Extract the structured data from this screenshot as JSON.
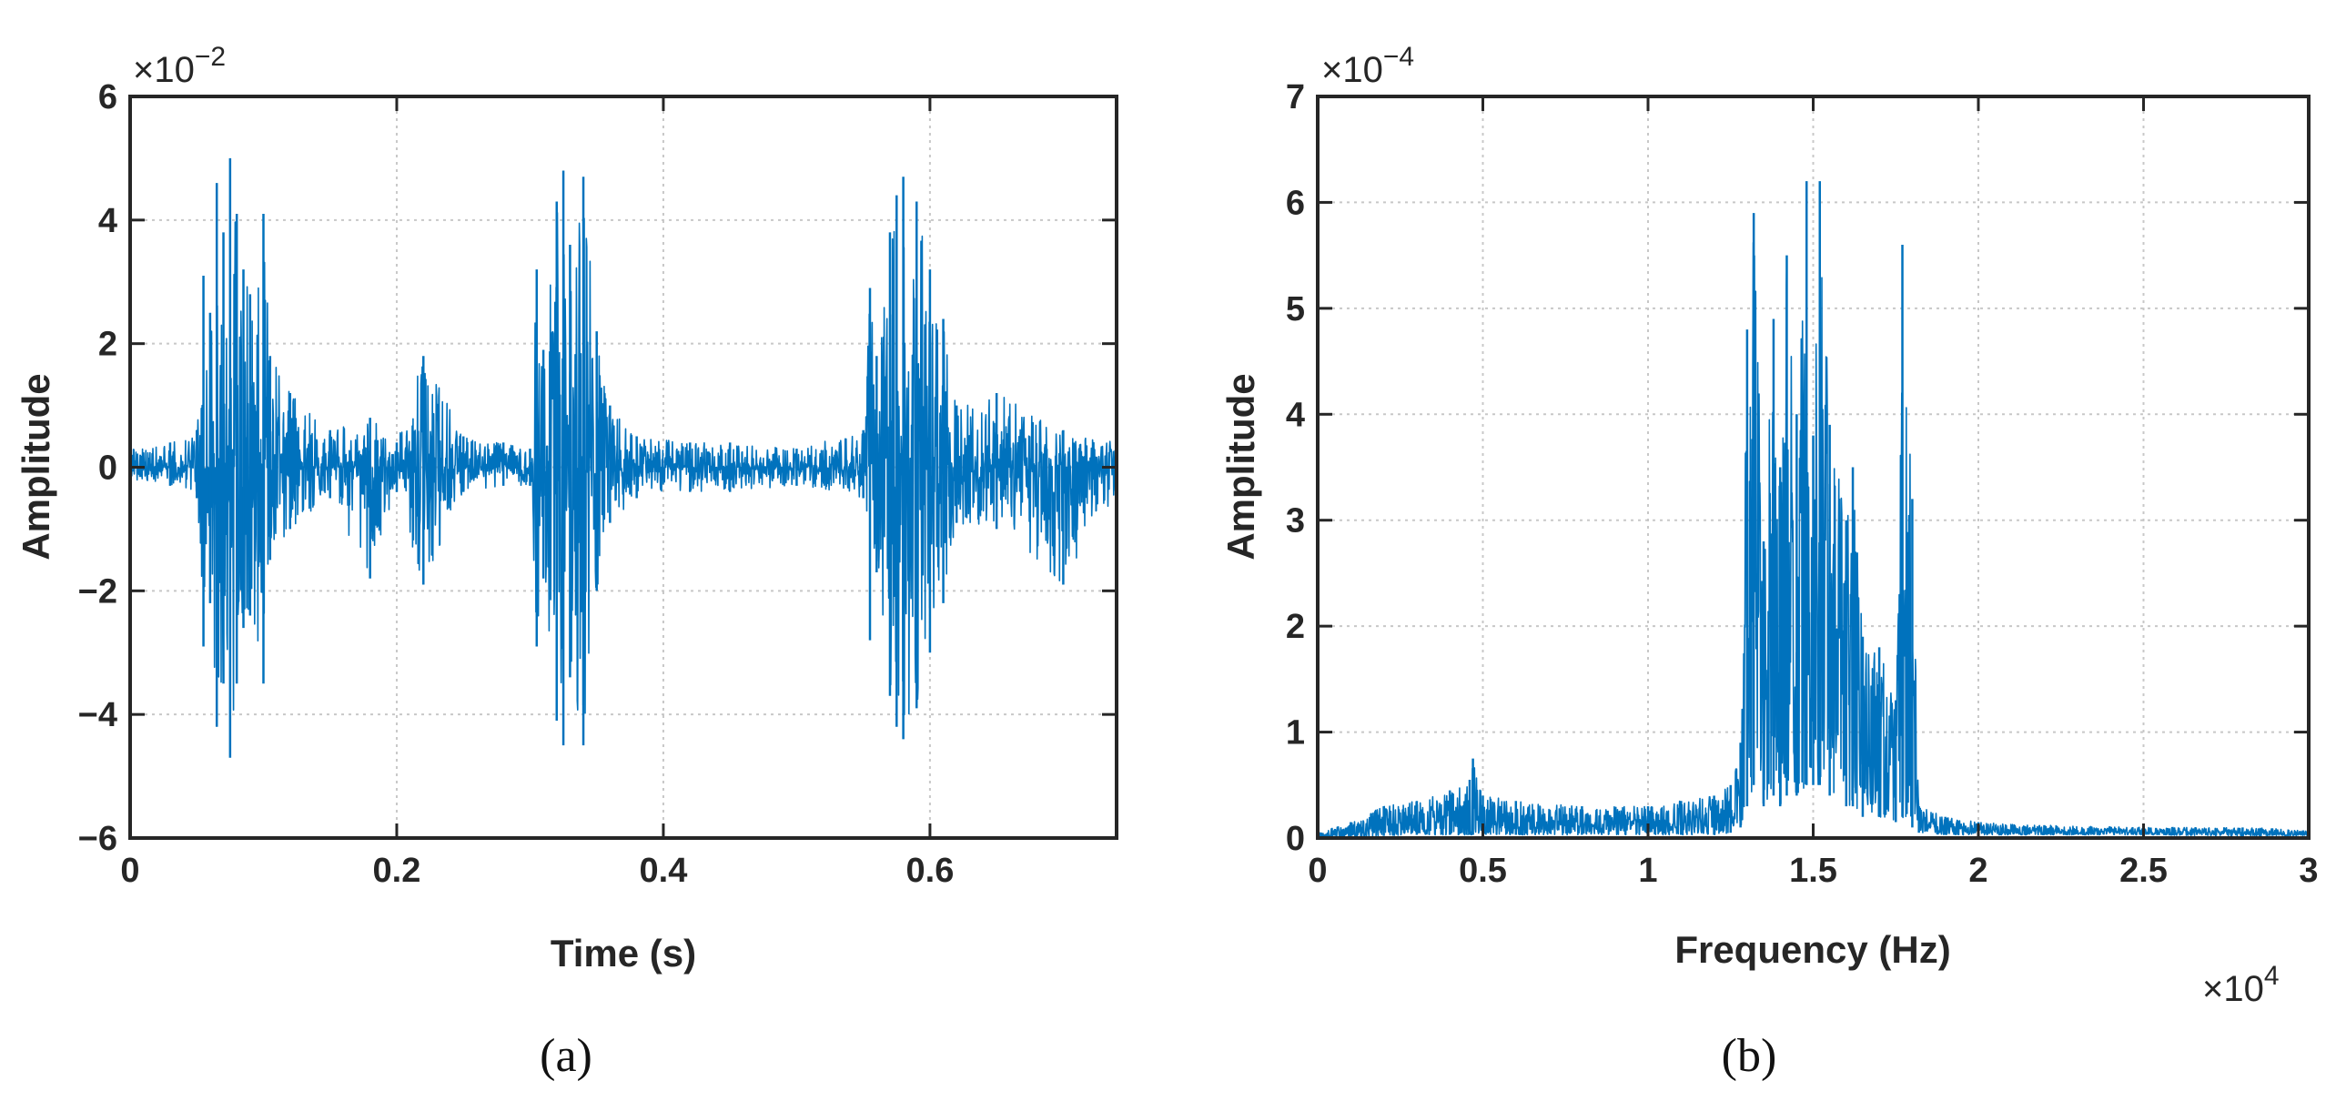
{
  "chart_data": [
    {
      "type": "line",
      "panel": "a",
      "caption": "(a)",
      "title": "",
      "xlabel": "Time (s)",
      "ylabel": "Amplitude",
      "y_exponent_base": "×10",
      "y_exponent": "−2",
      "x_exponent_base": "",
      "x_exponent": "",
      "xlim": [
        0,
        0.74
      ],
      "ylim": [
        -6,
        6
      ],
      "xticks": [
        0,
        0.2,
        0.4,
        0.6
      ],
      "xtick_labels": [
        "0",
        "0.2",
        "0.4",
        "0.6"
      ],
      "yticks": [
        -6,
        -4,
        -2,
        0,
        2,
        4,
        6
      ],
      "ytick_labels": [
        "−6",
        "−4",
        "−2",
        "0",
        "2",
        "4",
        "6"
      ],
      "grid": true,
      "legend": "none",
      "color": "#0072BD",
      "series": [
        {
          "x": [
            0.0,
            0.03,
            0.05,
            0.055,
            0.06,
            0.065,
            0.07,
            0.075,
            0.08,
            0.085,
            0.09,
            0.1,
            0.105,
            0.12,
            0.15,
            0.18,
            0.2,
            0.22,
            0.25,
            0.28,
            0.3,
            0.305,
            0.31,
            0.32,
            0.325,
            0.33,
            0.34,
            0.35,
            0.36,
            0.38,
            0.42,
            0.45,
            0.5,
            0.55,
            0.555,
            0.56,
            0.57,
            0.575,
            0.58,
            0.59,
            0.6,
            0.61,
            0.62,
            0.65,
            0.7,
            0.74
          ],
          "upper": [
            0.3,
            0.4,
            0.6,
            3.1,
            2.5,
            4.6,
            3.8,
            5.0,
            4.1,
            3.2,
            2.8,
            4.1,
            1.8,
            1.2,
            0.6,
            0.8,
            0.4,
            1.8,
            0.5,
            0.4,
            0.3,
            3.2,
            1.9,
            4.3,
            4.8,
            3.6,
            4.7,
            2.2,
            1.0,
            0.5,
            0.4,
            0.4,
            0.3,
            0.6,
            2.9,
            1.8,
            3.8,
            4.4,
            4.7,
            4.3,
            3.2,
            2.4,
            1.0,
            1.2,
            0.6,
            0.4
          ],
          "lower": [
            -0.2,
            -0.3,
            -0.5,
            -2.9,
            -2.2,
            -4.2,
            -3.5,
            -4.7,
            -3.5,
            -2.6,
            -2.4,
            -3.5,
            -1.5,
            -1.0,
            -0.5,
            -1.8,
            -0.4,
            -1.9,
            -0.4,
            -0.3,
            -0.3,
            -2.9,
            -1.8,
            -4.1,
            -4.5,
            -3.4,
            -4.5,
            -2.0,
            -0.9,
            -0.5,
            -0.4,
            -0.4,
            -0.3,
            -0.5,
            -2.8,
            -1.7,
            -3.7,
            -4.2,
            -4.4,
            -3.9,
            -3.0,
            -2.2,
            -0.9,
            -1.0,
            -1.9,
            -0.4
          ]
        }
      ]
    },
    {
      "type": "line",
      "panel": "b",
      "caption": "(b)",
      "title": "",
      "xlabel": "Frequency (Hz)",
      "ylabel": "Amplitude",
      "y_exponent_base": "×10",
      "y_exponent": "−4",
      "x_exponent_base": "×10",
      "x_exponent": "4",
      "xlim": [
        0,
        3
      ],
      "ylim": [
        0,
        7
      ],
      "xticks": [
        0,
        0.5,
        1,
        1.5,
        2,
        2.5,
        3
      ],
      "xtick_labels": [
        "0",
        "0.5",
        "1",
        "1.5",
        "2",
        "2.5",
        "3"
      ],
      "yticks": [
        0,
        1,
        2,
        3,
        4,
        5,
        6,
        7
      ],
      "ytick_labels": [
        "0",
        "1",
        "2",
        "3",
        "4",
        "5",
        "6",
        "7"
      ],
      "grid": true,
      "legend": "none",
      "color": "#0072BD",
      "series": [
        {
          "x": [
            0.0,
            0.1,
            0.2,
            0.3,
            0.4,
            0.46,
            0.47,
            0.5,
            0.6,
            0.8,
            1.0,
            1.1,
            1.2,
            1.25,
            1.28,
            1.3,
            1.32,
            1.35,
            1.38,
            1.4,
            1.42,
            1.45,
            1.48,
            1.5,
            1.52,
            1.55,
            1.6,
            1.62,
            1.65,
            1.7,
            1.75,
            1.77,
            1.8,
            1.82,
            1.9,
            2.0,
            2.2,
            2.5,
            2.8,
            3.0
          ],
          "upper": [
            0.05,
            0.15,
            0.3,
            0.35,
            0.45,
            0.55,
            0.75,
            0.4,
            0.35,
            0.3,
            0.3,
            0.35,
            0.4,
            0.5,
            0.9,
            4.8,
            5.9,
            2.8,
            4.9,
            3.5,
            5.5,
            4.0,
            6.2,
            3.8,
            6.2,
            3.9,
            3.0,
            3.5,
            1.9,
            1.8,
            1.3,
            5.6,
            3.2,
            0.3,
            0.2,
            0.15,
            0.12,
            0.1,
            0.1,
            0.08
          ],
          "lower": [
            0.0,
            0.0,
            0.02,
            0.03,
            0.03,
            0.03,
            0.03,
            0.03,
            0.03,
            0.03,
            0.03,
            0.03,
            0.03,
            0.05,
            0.1,
            0.3,
            0.5,
            0.3,
            0.4,
            0.3,
            0.4,
            0.4,
            0.5,
            0.5,
            0.5,
            0.4,
            0.3,
            0.3,
            0.2,
            0.2,
            0.15,
            0.2,
            0.1,
            0.05,
            0.03,
            0.03,
            0.03,
            0.03,
            0.02,
            0.02
          ]
        }
      ]
    }
  ]
}
